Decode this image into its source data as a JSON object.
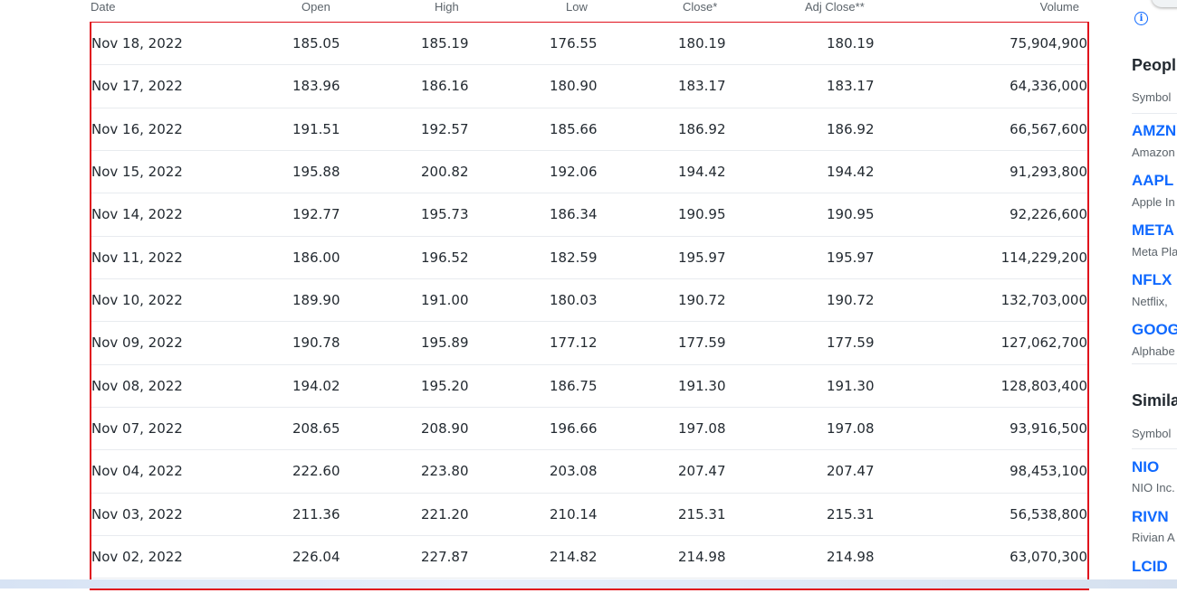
{
  "table": {
    "headers": {
      "date": "Date",
      "open": "Open",
      "high": "High",
      "low": "Low",
      "close": "Close*",
      "adj_close": "Adj Close**",
      "volume": "Volume"
    },
    "rows": [
      {
        "date": "Nov 18, 2022",
        "open": "185.05",
        "high": "185.19",
        "low": "176.55",
        "close": "180.19",
        "adj_close": "180.19",
        "volume": "75,904,900"
      },
      {
        "date": "Nov 17, 2022",
        "open": "183.96",
        "high": "186.16",
        "low": "180.90",
        "close": "183.17",
        "adj_close": "183.17",
        "volume": "64,336,000"
      },
      {
        "date": "Nov 16, 2022",
        "open": "191.51",
        "high": "192.57",
        "low": "185.66",
        "close": "186.92",
        "adj_close": "186.92",
        "volume": "66,567,600"
      },
      {
        "date": "Nov 15, 2022",
        "open": "195.88",
        "high": "200.82",
        "low": "192.06",
        "close": "194.42",
        "adj_close": "194.42",
        "volume": "91,293,800"
      },
      {
        "date": "Nov 14, 2022",
        "open": "192.77",
        "high": "195.73",
        "low": "186.34",
        "close": "190.95",
        "adj_close": "190.95",
        "volume": "92,226,600"
      },
      {
        "date": "Nov 11, 2022",
        "open": "186.00",
        "high": "196.52",
        "low": "182.59",
        "close": "195.97",
        "adj_close": "195.97",
        "volume": "114,229,200"
      },
      {
        "date": "Nov 10, 2022",
        "open": "189.90",
        "high": "191.00",
        "low": "180.03",
        "close": "190.72",
        "adj_close": "190.72",
        "volume": "132,703,000"
      },
      {
        "date": "Nov 09, 2022",
        "open": "190.78",
        "high": "195.89",
        "low": "177.12",
        "close": "177.59",
        "adj_close": "177.59",
        "volume": "127,062,700"
      },
      {
        "date": "Nov 08, 2022",
        "open": "194.02",
        "high": "195.20",
        "low": "186.75",
        "close": "191.30",
        "adj_close": "191.30",
        "volume": "128,803,400"
      },
      {
        "date": "Nov 07, 2022",
        "open": "208.65",
        "high": "208.90",
        "low": "196.66",
        "close": "197.08",
        "adj_close": "197.08",
        "volume": "93,916,500"
      },
      {
        "date": "Nov 04, 2022",
        "open": "222.60",
        "high": "223.80",
        "low": "203.08",
        "close": "207.47",
        "adj_close": "207.47",
        "volume": "98,453,100"
      },
      {
        "date": "Nov 03, 2022",
        "open": "211.36",
        "high": "221.20",
        "low": "210.14",
        "close": "215.31",
        "adj_close": "215.31",
        "volume": "56,538,800"
      },
      {
        "date": "Nov 02, 2022",
        "open": "226.04",
        "high": "227.87",
        "low": "214.82",
        "close": "214.98",
        "adj_close": "214.98",
        "volume": "63,070,300"
      }
    ]
  },
  "sidebar": {
    "info_icon": "info-icon",
    "people_title": "Peopl",
    "symbol_header": "Symbol",
    "people_items": [
      {
        "ticker": "AMZN",
        "company": "Amazon"
      },
      {
        "ticker": "AAPL",
        "company": "Apple In"
      },
      {
        "ticker": "META",
        "company": "Meta Pla"
      },
      {
        "ticker": "NFLX",
        "company": "Netflix,"
      },
      {
        "ticker": "GOOG",
        "company": "Alphabe"
      }
    ],
    "similar_title": "Simila",
    "similar_symbol_header": "Symbol",
    "similar_items": [
      {
        "ticker": "NIO",
        "company": "NIO Inc."
      },
      {
        "ticker": "RIVN",
        "company": "Rivian A"
      },
      {
        "ticker": "LCID",
        "company": ""
      }
    ]
  },
  "colors": {
    "highlight_border": "#e0101c",
    "link": "#0f69ff",
    "header_text": "#5b636a"
  }
}
